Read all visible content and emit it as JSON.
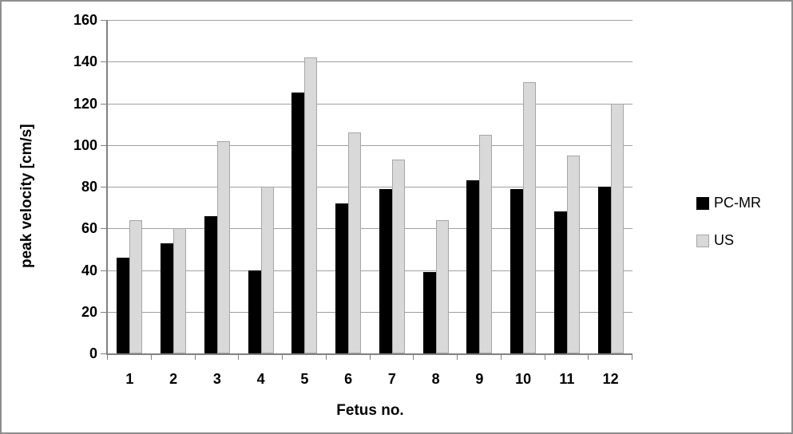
{
  "chart_data": {
    "type": "bar",
    "categories": [
      "1",
      "2",
      "3",
      "4",
      "5",
      "6",
      "7",
      "8",
      "9",
      "10",
      "11",
      "12"
    ],
    "series": [
      {
        "name": "PC-MR",
        "color": "#000000",
        "border_color": "#000000",
        "values": [
          46,
          53,
          66,
          40,
          125,
          72,
          79,
          39,
          83,
          79,
          68,
          80
        ]
      },
      {
        "name": "US",
        "color": "#d9d9d9",
        "border_color": "#a6a6a6",
        "values": [
          64,
          60,
          102,
          80,
          142,
          106,
          93,
          64,
          105,
          130,
          95,
          120
        ]
      }
    ],
    "xlabel": "Fetus no.",
    "ylabel": "peak velocity [cm/s]",
    "ylim": [
      0,
      160
    ],
    "ytick_values": [
      0,
      20,
      40,
      60,
      80,
      100,
      120,
      140,
      160
    ],
    "ytick_labels": [
      "0",
      "20",
      "40",
      "60",
      "80",
      "100",
      "120",
      "140",
      "160"
    ],
    "grid": true,
    "legend_position": "right",
    "colors": {
      "gridline": "#a0a0a0",
      "axis": "#808080",
      "text": "#000000",
      "frame_border": "#8f8f8f",
      "background": "#ffffff"
    }
  }
}
